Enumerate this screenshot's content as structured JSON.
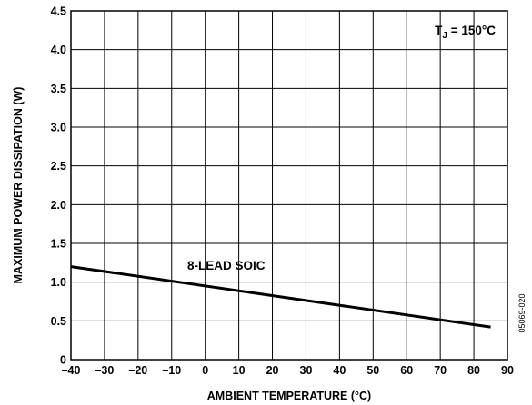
{
  "chart_data": {
    "type": "line",
    "xlabel": "AMBIENT TEMPERATURE (°C)",
    "ylabel": "MAXIMUM POWER DISSIPATION (W)",
    "xlim": [
      -40,
      90
    ],
    "ylim": [
      0,
      4.5
    ],
    "x_ticks": [
      "–40",
      "–30",
      "–20",
      "–10",
      "0",
      "10",
      "20",
      "30",
      "40",
      "50",
      "60",
      "70",
      "80",
      "90"
    ],
    "y_ticks": [
      "0",
      "0.5",
      "1.0",
      "1.5",
      "2.0",
      "2.5",
      "3.0",
      "3.5",
      "4.0",
      "4.5"
    ],
    "grid": true,
    "series": [
      {
        "name": "8-LEAD SOIC",
        "x": [
          -40,
          85
        ],
        "y": [
          1.2,
          0.42
        ]
      }
    ],
    "annotations": {
      "tj_main": "T",
      "tj_sub": "J",
      "tj_rest": " = 150°C",
      "figure_id": "05069-020"
    }
  }
}
